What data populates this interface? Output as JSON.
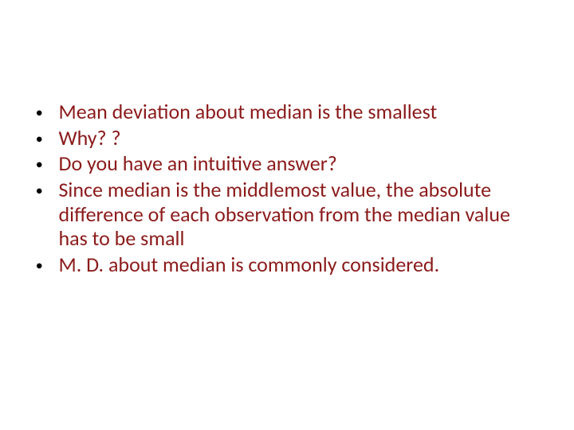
{
  "slide": {
    "background_color": "#ffffff",
    "text_color": "#8b1a1a",
    "bullet_color": "#000000",
    "font_family": "Calibri",
    "font_size": 26,
    "bullets": [
      "Mean deviation about median is the smallest",
      "Why? ?",
      "Do you have an intuitive answer?",
      "Since median is the middlemost value, the absolute difference of each observation from the median value has to be small",
      "M. D. about median is commonly considered."
    ]
  }
}
